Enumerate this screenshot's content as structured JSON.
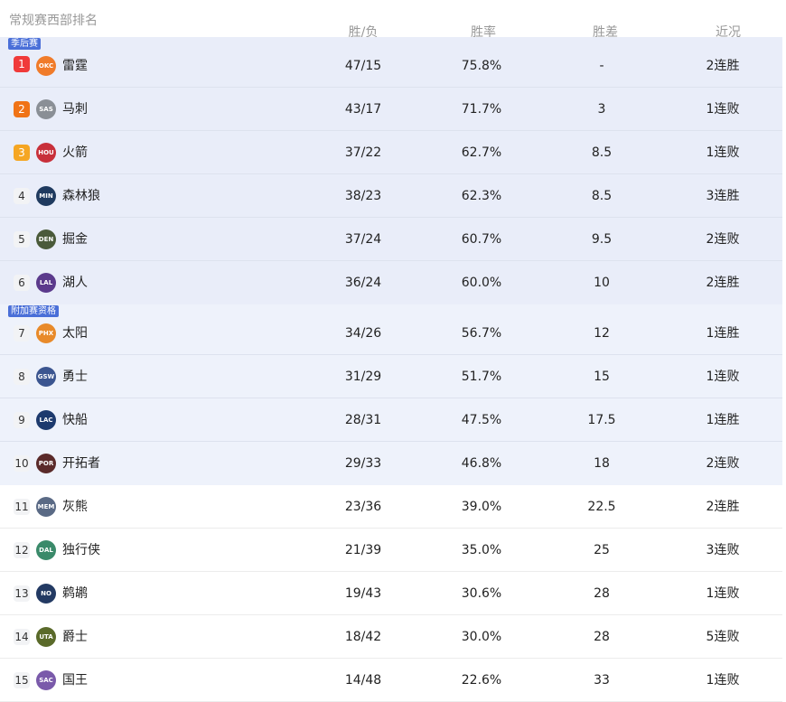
{
  "header": {
    "title": "常规赛西部排名",
    "cols": [
      "胜/负",
      "胜率",
      "胜差",
      "近况"
    ]
  },
  "sections": [
    {
      "tag": "季后赛",
      "kind": "playoff",
      "teams": [
        {
          "rank": "1",
          "name": "雷霆",
          "wl": "47/15",
          "pct": "75.8%",
          "gb": "-",
          "streak": "2连胜",
          "badge": "#f03a3a",
          "logo": "OKC",
          "logo_color": "#f07b2a"
        },
        {
          "rank": "2",
          "name": "马刺",
          "wl": "43/17",
          "pct": "71.7%",
          "gb": "3",
          "streak": "1连败",
          "badge": "#f07316",
          "logo": "SAS",
          "logo_color": "#8a8f96"
        },
        {
          "rank": "3",
          "name": "火箭",
          "wl": "37/22",
          "pct": "62.7%",
          "gb": "8.5",
          "streak": "1连败",
          "badge": "#f5a623",
          "logo": "HOU",
          "logo_color": "#c8303a"
        },
        {
          "rank": "4",
          "name": "森林狼",
          "wl": "38/23",
          "pct": "62.3%",
          "gb": "8.5",
          "streak": "3连胜",
          "logo": "MIN",
          "logo_color": "#1f3a5f"
        },
        {
          "rank": "5",
          "name": "掘金",
          "wl": "37/24",
          "pct": "60.7%",
          "gb": "9.5",
          "streak": "2连败",
          "logo": "DEN",
          "logo_color": "#4a5a3a"
        },
        {
          "rank": "6",
          "name": "湖人",
          "wl": "36/24",
          "pct": "60.0%",
          "gb": "10",
          "streak": "2连胜",
          "logo": "LAL",
          "logo_color": "#5b3a8c"
        }
      ]
    },
    {
      "tag": "附加赛资格",
      "kind": "playin",
      "teams": [
        {
          "rank": "7",
          "name": "太阳",
          "wl": "34/26",
          "pct": "56.7%",
          "gb": "12",
          "streak": "1连胜",
          "logo": "PHX",
          "logo_color": "#e88a2a"
        },
        {
          "rank": "8",
          "name": "勇士",
          "wl": "31/29",
          "pct": "51.7%",
          "gb": "15",
          "streak": "1连败",
          "logo": "GSW",
          "logo_color": "#3b5590"
        },
        {
          "rank": "9",
          "name": "快船",
          "wl": "28/31",
          "pct": "47.5%",
          "gb": "17.5",
          "streak": "1连胜",
          "logo": "LAC",
          "logo_color": "#1d3a6e"
        },
        {
          "rank": "10",
          "name": "开拓者",
          "wl": "29/33",
          "pct": "46.8%",
          "gb": "18",
          "streak": "2连败",
          "logo": "POR",
          "logo_color": "#5a2a2a"
        }
      ]
    },
    {
      "tag": "",
      "kind": "white",
      "teams": [
        {
          "rank": "11",
          "name": "灰熊",
          "wl": "23/36",
          "pct": "39.0%",
          "gb": "22.5",
          "streak": "2连胜",
          "logo": "MEM",
          "logo_color": "#5a6a85"
        },
        {
          "rank": "12",
          "name": "独行侠",
          "wl": "21/39",
          "pct": "35.0%",
          "gb": "25",
          "streak": "3连败",
          "logo": "DAL",
          "logo_color": "#3a8a6a"
        },
        {
          "rank": "13",
          "name": "鹈鹕",
          "wl": "19/43",
          "pct": "30.6%",
          "gb": "28",
          "streak": "1连败",
          "logo": "NO",
          "logo_color": "#233a63"
        },
        {
          "rank": "14",
          "name": "爵士",
          "wl": "18/42",
          "pct": "30.0%",
          "gb": "28",
          "streak": "5连败",
          "logo": "UTA",
          "logo_color": "#5a6a2a"
        },
        {
          "rank": "15",
          "name": "国王",
          "wl": "14/48",
          "pct": "22.6%",
          "gb": "33",
          "streak": "1连败",
          "logo": "SAC",
          "logo_color": "#7a5aaa"
        }
      ]
    }
  ]
}
